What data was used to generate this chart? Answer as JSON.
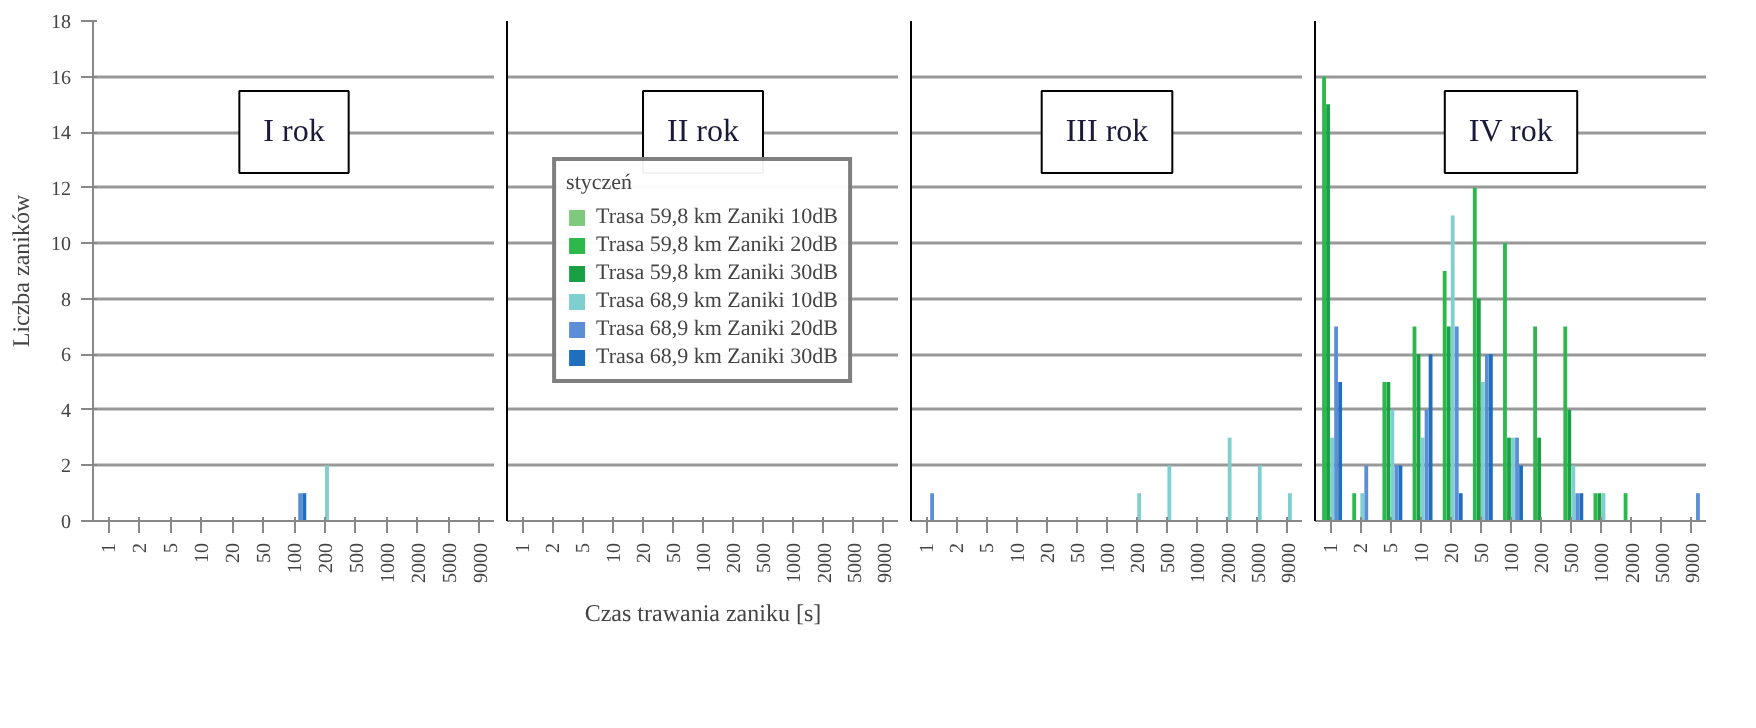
{
  "chart_data": [
    {
      "type": "bar",
      "ylabel": "Liczba zaników",
      "categories": [
        "1",
        "2",
        "5",
        "10",
        "20",
        "50",
        "100",
        "200",
        "500",
        "1000",
        "2000",
        "5000",
        "9000"
      ],
      "ylim": [
        0,
        18
      ],
      "yticks": [
        0,
        2,
        4,
        6,
        8,
        10,
        12,
        14,
        16,
        18
      ],
      "grid": "y",
      "annotations": [
        "I rok"
      ],
      "series": [
        {
          "color": "#7fc97f",
          "values": [
            0,
            0,
            0,
            0,
            0,
            0,
            0,
            0,
            0,
            0,
            0,
            0,
            0
          ]
        },
        {
          "color": "#2db84b",
          "values": [
            0,
            0,
            0,
            0,
            0,
            0,
            0,
            0,
            0,
            0,
            0,
            0,
            0
          ]
        },
        {
          "color": "#19a046",
          "values": [
            0,
            0,
            0,
            0,
            0,
            0,
            0,
            0,
            0,
            0,
            0,
            0,
            0
          ]
        },
        {
          "color": "#7fcfcf",
          "values": [
            0,
            0,
            0,
            0,
            0,
            0,
            0,
            2,
            0,
            0,
            0,
            0,
            0
          ]
        },
        {
          "color": "#5b8ed6",
          "values": [
            0,
            0,
            0,
            0,
            0,
            0,
            1,
            0,
            0,
            0,
            0,
            0,
            0
          ]
        },
        {
          "color": "#1f6fbf",
          "values": [
            0,
            0,
            0,
            0,
            0,
            0,
            1,
            0,
            0,
            0,
            0,
            0,
            0
          ]
        }
      ]
    },
    {
      "type": "bar",
      "xlabel": "Czas trawania zaniku [s]",
      "legend_title": "styczeń",
      "legend": "center",
      "categories": [
        "1",
        "2",
        "5",
        "10",
        "20",
        "50",
        "100",
        "200",
        "500",
        "1000",
        "2000",
        "5000",
        "9000"
      ],
      "ylim": [
        0,
        18
      ],
      "yticks": [
        0,
        2,
        4,
        6,
        8,
        10,
        12,
        14,
        16,
        18
      ],
      "grid": "y",
      "tick_labels": "x",
      "annotations": [
        "II rok"
      ],
      "series": [
        {
          "name": "Trasa 59,8 km Zaniki 10dB",
          "color": "#7fc97f",
          "values": [
            0,
            0,
            0,
            0,
            0,
            0,
            0,
            0,
            0,
            0,
            0,
            0,
            0
          ]
        },
        {
          "name": "Trasa 59,8 km Zaniki 20dB",
          "color": "#2db84b",
          "values": [
            0,
            0,
            0,
            0,
            0,
            0,
            0,
            0,
            0,
            0,
            0,
            0,
            0
          ]
        },
        {
          "name": "Trasa 59,8 km Zaniki 30dB",
          "color": "#19a046",
          "values": [
            0,
            0,
            0,
            0,
            0,
            0,
            0,
            0,
            0,
            0,
            0,
            0,
            0
          ]
        },
        {
          "name": "Trasa 68,9 km Zaniki 10dB",
          "color": "#7fcfcf",
          "values": [
            0,
            0,
            0,
            0,
            0,
            0,
            0,
            0,
            0,
            0,
            0,
            0,
            0
          ]
        },
        {
          "name": "Trasa 68,9 km Zaniki 20dB",
          "color": "#5b8ed6",
          "values": [
            0,
            0,
            0,
            0,
            0,
            0,
            0,
            0,
            0,
            0,
            0,
            0,
            0
          ]
        },
        {
          "name": "Trasa 68,9 km Zaniki 30dB",
          "color": "#1f6fbf",
          "values": [
            0,
            0,
            0,
            0,
            0,
            0,
            0,
            0,
            0,
            0,
            0,
            0,
            0
          ]
        }
      ]
    },
    {
      "type": "bar",
      "categories": [
        "1",
        "2",
        "5",
        "10",
        "20",
        "50",
        "100",
        "200",
        "500",
        "1000",
        "2000",
        "5000",
        "9000"
      ],
      "ylim": [
        0,
        18
      ],
      "yticks": [
        0,
        2,
        4,
        6,
        8,
        10,
        12,
        14,
        16,
        18
      ],
      "grid": "y",
      "tick_labels": "x",
      "annotations": [
        "III rok"
      ],
      "series": [
        {
          "color": "#7fc97f",
          "values": [
            0,
            0,
            0,
            0,
            0,
            0,
            0,
            0,
            0,
            0,
            0,
            0,
            0
          ]
        },
        {
          "color": "#2db84b",
          "values": [
            0,
            0,
            0,
            0,
            0,
            0,
            0,
            0,
            0,
            0,
            0,
            0,
            0
          ]
        },
        {
          "color": "#19a046",
          "values": [
            0,
            0,
            0,
            0,
            0,
            0,
            0,
            0,
            0,
            0,
            0,
            0,
            0
          ]
        },
        {
          "color": "#7fcfcf",
          "values": [
            0,
            0,
            0,
            0,
            0,
            0,
            0,
            1,
            2,
            0,
            3,
            2,
            1
          ]
        },
        {
          "color": "#5b8ed6",
          "values": [
            1,
            0,
            0,
            0,
            0,
            0,
            0,
            0,
            0,
            0,
            0,
            0,
            0
          ]
        },
        {
          "color": "#1f6fbf",
          "values": [
            0,
            0,
            0,
            0,
            0,
            0,
            0,
            0,
            0,
            0,
            0,
            0,
            0
          ]
        }
      ]
    },
    {
      "type": "bar",
      "categories": [
        "1",
        "2",
        "5",
        "10",
        "20",
        "50",
        "100",
        "200",
        "500",
        "1000",
        "2000",
        "5000",
        "9000"
      ],
      "ylim": [
        0,
        18
      ],
      "yticks": [
        0,
        2,
        4,
        6,
        8,
        10,
        12,
        14,
        16,
        18
      ],
      "grid": "y",
      "tick_labels": "x",
      "annotations": [
        "IV rok"
      ],
      "series": [
        {
          "color": "#7fc97f",
          "values": [
            0,
            0,
            0,
            0,
            0,
            0,
            0,
            0,
            0,
            0,
            0,
            0,
            0
          ]
        },
        {
          "color": "#2db84b",
          "values": [
            16,
            1,
            5,
            7,
            9,
            12,
            10,
            7,
            7,
            1,
            1,
            0,
            0
          ]
        },
        {
          "color": "#19a046",
          "values": [
            15,
            0,
            5,
            6,
            7,
            8,
            3,
            3,
            4,
            1,
            0,
            0,
            0
          ]
        },
        {
          "color": "#7fcfcf",
          "values": [
            3,
            1,
            4,
            3,
            11,
            5,
            3,
            0,
            2,
            1,
            0,
            0,
            0
          ]
        },
        {
          "color": "#5b8ed6",
          "values": [
            7,
            2,
            2,
            4,
            7,
            6,
            3,
            0,
            1,
            0,
            0,
            0,
            1
          ]
        },
        {
          "color": "#1f6fbf",
          "values": [
            5,
            0,
            2,
            6,
            1,
            6,
            2,
            0,
            1,
            0,
            0,
            0,
            0
          ]
        }
      ]
    }
  ]
}
